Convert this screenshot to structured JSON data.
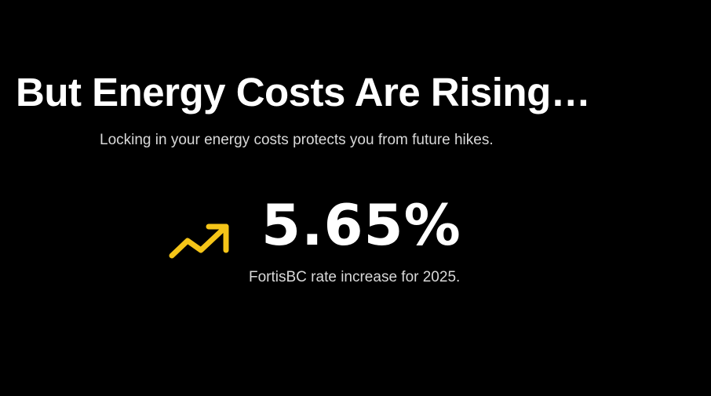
{
  "hero": {
    "title": "But Energy Costs Are Rising…",
    "subtitle": "Locking in your energy costs protects you from future hikes."
  },
  "stat": {
    "value": "5.65%",
    "caption": "FortisBC rate increase for 2025.",
    "icon": "trending-up-icon"
  },
  "colors": {
    "background": "#000000",
    "text": "#ffffff",
    "muted_text": "#d9d9d9",
    "accent": "#f5c518"
  }
}
